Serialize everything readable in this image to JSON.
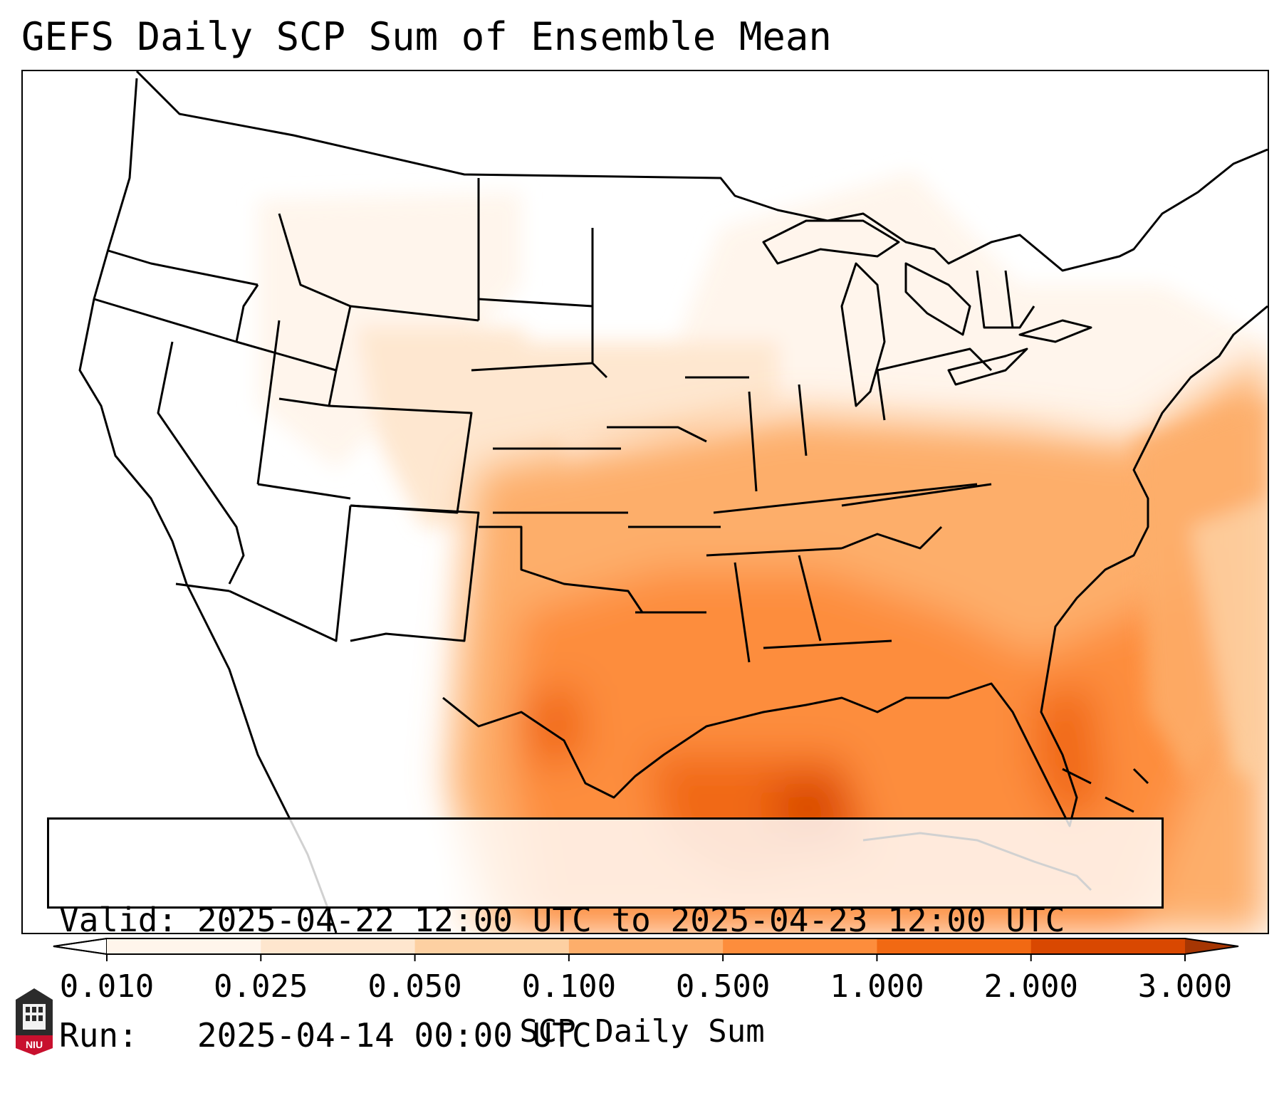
{
  "title": "GEFS Daily SCP Sum of Ensemble Mean",
  "info": {
    "valid_label": "Valid:",
    "valid_value": "2025-04-22 12:00 UTC to 2025-04-23 12:00 UTC",
    "run_label": "Run:",
    "run_value": "2025-04-14 00:00 UTC"
  },
  "colorbar": {
    "label": "SCP Daily Sum",
    "ticks": [
      "0.010",
      "0.025",
      "0.050",
      "0.100",
      "0.500",
      "1.000",
      "2.000",
      "3.000"
    ],
    "colors": [
      "#fff5eb",
      "#fee6ce",
      "#fdd0a2",
      "#fdae6b",
      "#fd8d3c",
      "#f16913",
      "#d94801"
    ],
    "under_color": "#ffffff",
    "over_color": "#a63603"
  },
  "logo": {
    "text": "NIU",
    "color": "#c8102e",
    "icon": "university-tower-icon"
  }
}
